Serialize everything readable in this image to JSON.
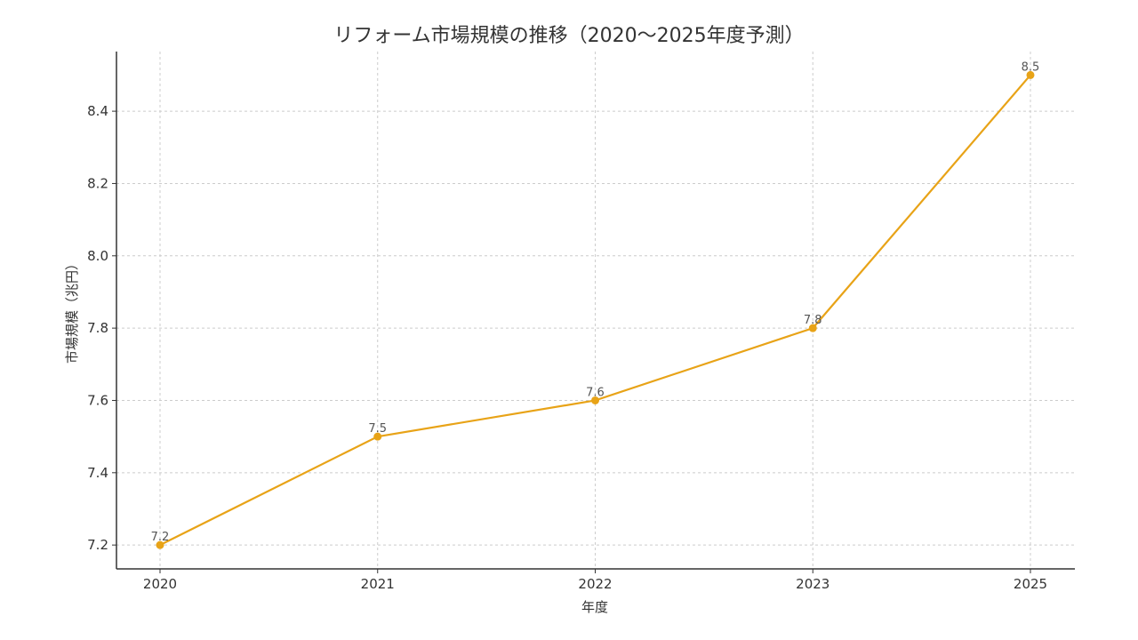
{
  "chart_data": {
    "type": "line",
    "title": "リフォーム市場規模の推移（2020〜2025年度予測）",
    "xlabel": "年度",
    "ylabel": "市場規模（兆円）",
    "categories": [
      "2020",
      "2021",
      "2022",
      "2023",
      "2025"
    ],
    "series": [
      {
        "name": "市場規模",
        "values": [
          7.2,
          7.5,
          7.6,
          7.8,
          8.5
        ],
        "color": "#E8A317"
      }
    ],
    "data_labels": [
      "7.2",
      "7.5",
      "7.6",
      "7.8",
      "8.5"
    ],
    "yticks": [
      7.2,
      7.4,
      7.6,
      7.8,
      8.0,
      8.2,
      8.4
    ],
    "ytick_labels": [
      "7.2",
      "7.4",
      "7.6",
      "7.8",
      "8.0",
      "8.2",
      "8.4"
    ],
    "ylim": [
      7.134,
      8.565
    ],
    "grid": true,
    "legend": false,
    "marker": "circle"
  }
}
